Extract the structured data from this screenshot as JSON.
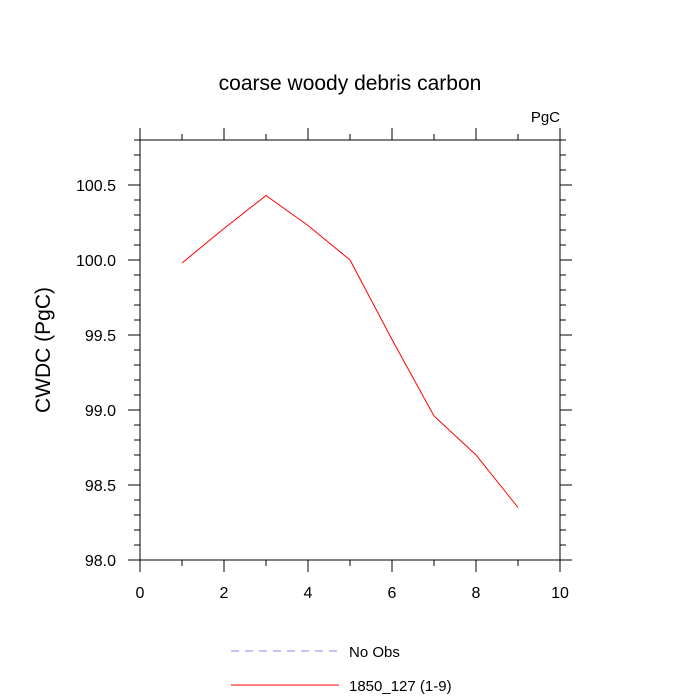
{
  "chart_data": {
    "type": "line",
    "title": "coarse woody debris carbon",
    "units_label": "PgC",
    "ylabel": "CWDC  (PgC)",
    "xlabel": "",
    "xlim": [
      0,
      10
    ],
    "ylim": [
      98.0,
      100.8
    ],
    "x_ticks": [
      0,
      2,
      4,
      6,
      8,
      10
    ],
    "x_tick_labels": [
      "0",
      "2",
      "4",
      "6",
      "8",
      "10"
    ],
    "y_ticks": [
      98.0,
      98.5,
      99.0,
      99.5,
      100.0,
      100.5
    ],
    "y_tick_labels": [
      "98.0",
      "98.5",
      "99.0",
      "99.5",
      "100.0",
      "100.5"
    ],
    "grid": false,
    "legend_position": "bottom",
    "series": [
      {
        "name": "No Obs",
        "color": "#8a8ae6",
        "dashed": true,
        "x": [],
        "values": []
      },
      {
        "name": "1850_127 (1-9)",
        "color": "#ff0000",
        "dashed": false,
        "x": [
          1,
          2,
          3,
          4,
          5,
          6,
          7,
          8,
          9
        ],
        "values": [
          99.98,
          100.21,
          100.43,
          100.23,
          100.0,
          99.47,
          98.96,
          98.7,
          98.35
        ]
      }
    ]
  }
}
